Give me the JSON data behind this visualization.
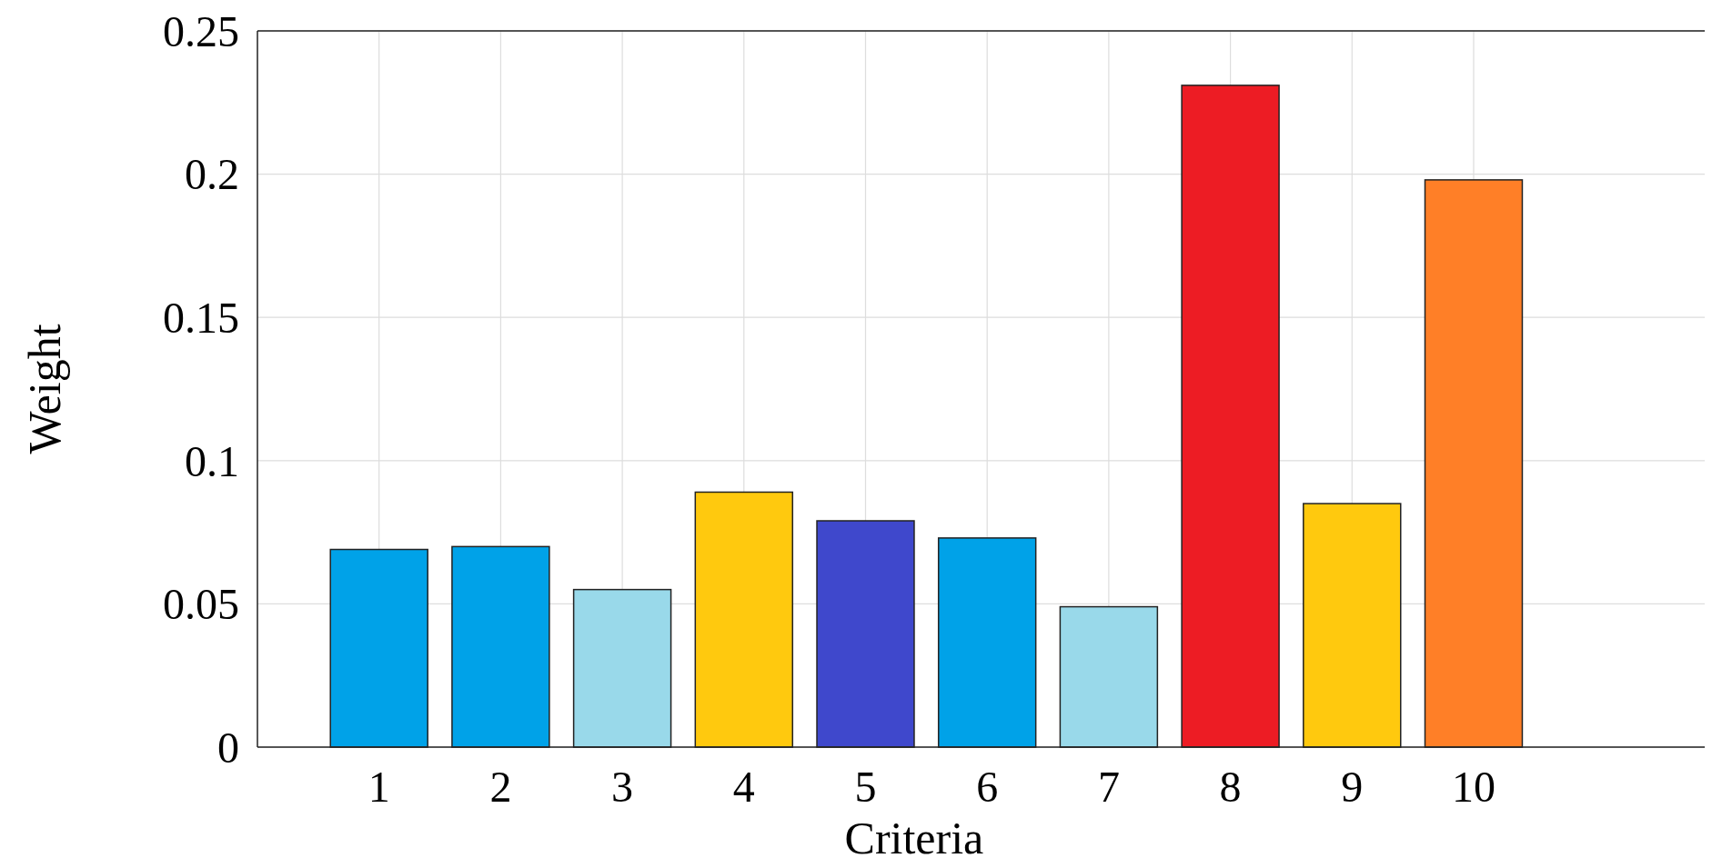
{
  "chart_data": {
    "type": "bar",
    "xlabel": "Criteria",
    "ylabel": "Weight",
    "x": [
      1,
      2,
      3,
      4,
      5,
      6,
      7,
      8,
      9,
      10
    ],
    "values": [
      0.069,
      0.07,
      0.055,
      0.089,
      0.079,
      0.073,
      0.049,
      0.231,
      0.085,
      0.198
    ],
    "colors": [
      "#00a2e8",
      "#00a2e8",
      "#99d9ea",
      "#ffc90e",
      "#3f48cc",
      "#00a2e8",
      "#99d9ea",
      "#ed1c24",
      "#ffc90e",
      "#ff7f27"
    ],
    "xlim": [
      0,
      11.9
    ],
    "xticks": [
      1,
      2,
      3,
      4,
      5,
      6,
      7,
      8,
      9,
      10
    ],
    "ylim": [
      0,
      0.25
    ],
    "yticks": [
      0,
      0.05,
      0.1,
      0.15,
      0.2,
      0.25
    ],
    "grid": true
  }
}
